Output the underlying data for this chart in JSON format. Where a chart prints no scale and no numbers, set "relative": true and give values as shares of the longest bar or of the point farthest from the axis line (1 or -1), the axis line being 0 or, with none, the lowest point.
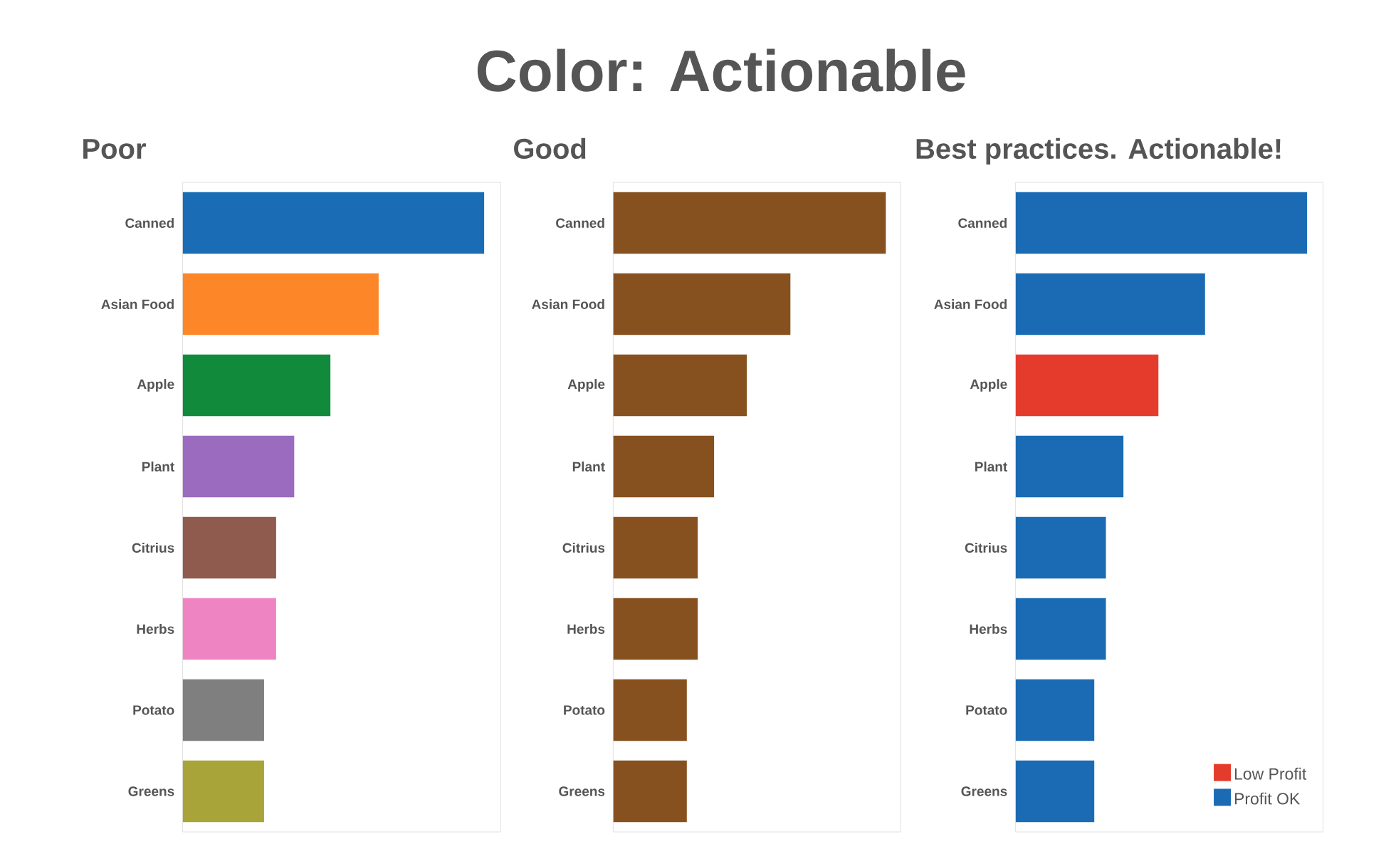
{
  "chart_data": [
    {
      "type": "other",
      "title": "Color: Actionable"
    },
    {
      "type": "bar",
      "title": "Poor",
      "orientation": "horizontal",
      "relative": true,
      "categories": [
        "Canned",
        "Asian Food",
        "Apple",
        "Plant",
        "Citrius",
        "Herbs",
        "Potato",
        "Greens"
      ],
      "values": [
        1,
        0.65,
        0.49,
        0.37,
        0.31,
        0.31,
        0.27,
        0.27
      ],
      "colors": [
        "#1a6db4",
        "#fd8628",
        "#128a3c",
        "#9a6bbf",
        "#8e5b4e",
        "#ee85c2",
        "#7f7f7f",
        "#a9a43a"
      ]
    },
    {
      "type": "bar",
      "title": "Good",
      "orientation": "horizontal",
      "relative": true,
      "categories": [
        "Canned",
        "Asian Food",
        "Apple",
        "Plant",
        "Citrius",
        "Herbs",
        "Potato",
        "Greens"
      ],
      "values": [
        1,
        0.65,
        0.49,
        0.37,
        0.31,
        0.31,
        0.27,
        0.27
      ],
      "color": "#87511f"
    },
    {
      "type": "bar",
      "title": "Best practices. Actionable!",
      "orientation": "horizontal",
      "relative": true,
      "categories": [
        "Canned",
        "Asian Food",
        "Apple",
        "Plant",
        "Citrius",
        "Herbs",
        "Potato",
        "Greens"
      ],
      "series": [
        {
          "name": "Low Profit",
          "color": "#e53b2c",
          "values": [
            null,
            null,
            0.49,
            null,
            null,
            null,
            null,
            null
          ]
        },
        {
          "name": "Profit OK",
          "color": "#1b6bb4",
          "values": [
            1,
            0.65,
            null,
            0.37,
            0.31,
            0.31,
            0.27,
            0.27
          ]
        }
      ],
      "legend": "bottom right"
    }
  ]
}
